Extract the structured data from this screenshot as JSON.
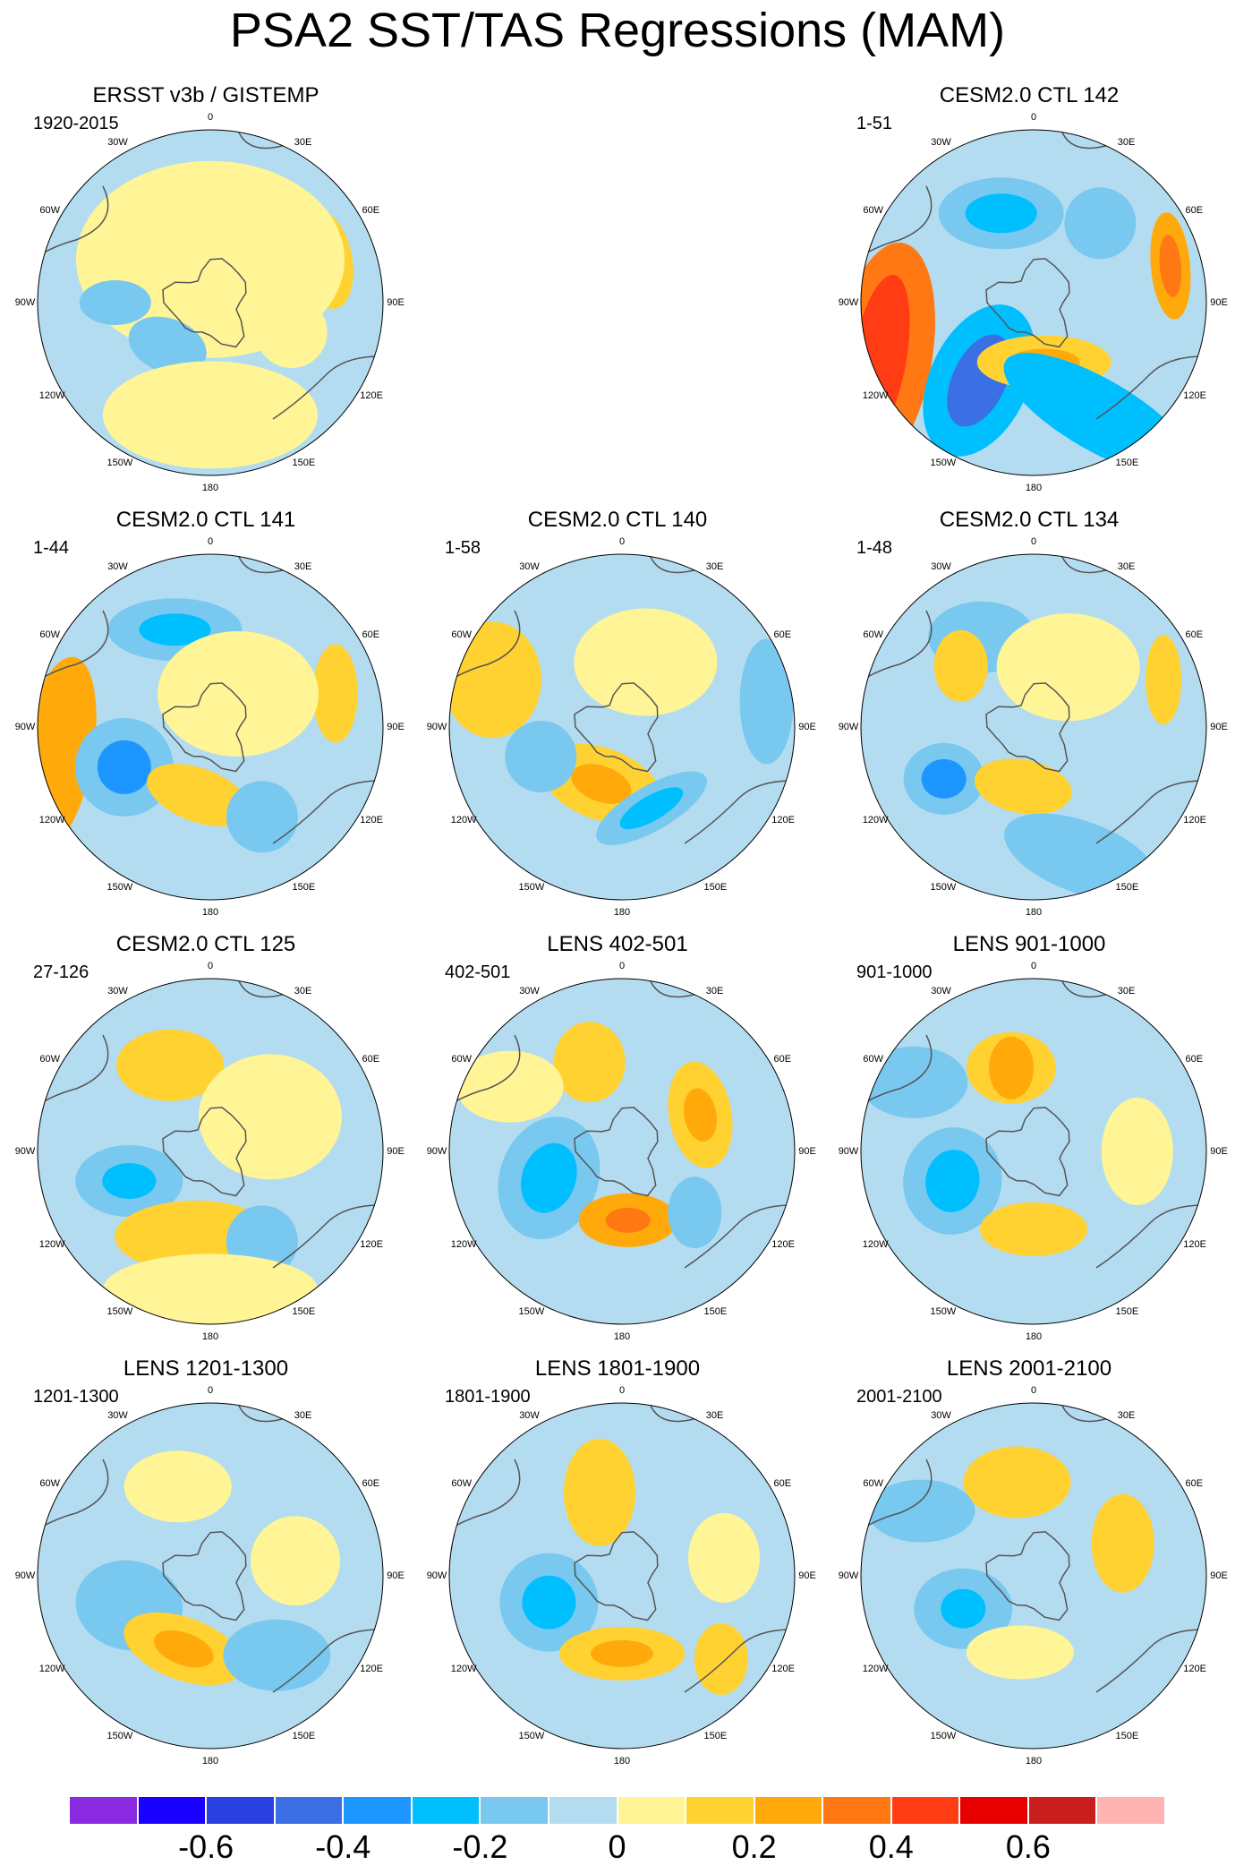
{
  "title": "PSA2 SST/TAS Regressions (MAM)",
  "panels": [
    {
      "id": "ersst",
      "title": "ERSST v3b / GISTEMP",
      "period": "1920-2015",
      "pattern": "obs"
    },
    {
      "id": "ctl142",
      "title": "CESM2.0 CTL 142",
      "period": "1-51",
      "pattern": "strong"
    },
    {
      "id": "ctl141",
      "title": "CESM2.0 CTL 141",
      "period": "1-44",
      "pattern": "ctl141"
    },
    {
      "id": "ctl140",
      "title": "CESM2.0 CTL 140",
      "period": "1-58",
      "pattern": "ctl140"
    },
    {
      "id": "ctl134",
      "title": "CESM2.0 CTL 134",
      "period": "1-48",
      "pattern": "ctl134"
    },
    {
      "id": "ctl125",
      "title": "CESM2.0 CTL 125",
      "period": "27-126",
      "pattern": "ctl125"
    },
    {
      "id": "lens402",
      "title": "LENS 402-501",
      "period": "402-501",
      "pattern": "lens402"
    },
    {
      "id": "lens901",
      "title": "LENS 901-1000",
      "period": "901-1000",
      "pattern": "lens901"
    },
    {
      "id": "lens1201",
      "title": "LENS 1201-1300",
      "period": "1201-1300",
      "pattern": "lens1201"
    },
    {
      "id": "lens1801",
      "title": "LENS 1801-1900",
      "period": "1801-1900",
      "pattern": "lens1801"
    },
    {
      "id": "lens2001",
      "title": "LENS 2001-2100",
      "period": "2001-2100",
      "pattern": "lens2001"
    }
  ],
  "longitude_labels": [
    "0",
    "30E",
    "60E",
    "90E",
    "120E",
    "150E",
    "180",
    "150W",
    "120W",
    "90W",
    "60W",
    "30W"
  ],
  "colorbar": {
    "colors": [
      "#8a2be2",
      "#1a00ff",
      "#2a3fe0",
      "#3a6fe6",
      "#1e96ff",
      "#00bfff",
      "#78c8f0",
      "#b4dcf0",
      "#fff596",
      "#ffd232",
      "#ffaa0a",
      "#ff7814",
      "#ff3c14",
      "#e60000",
      "#c81e1e",
      "#ffb4b4"
    ],
    "labels": [
      "-0.6",
      "-0.4",
      "-0.2",
      "0",
      "0.2",
      "0.4",
      "0.6"
    ]
  }
}
